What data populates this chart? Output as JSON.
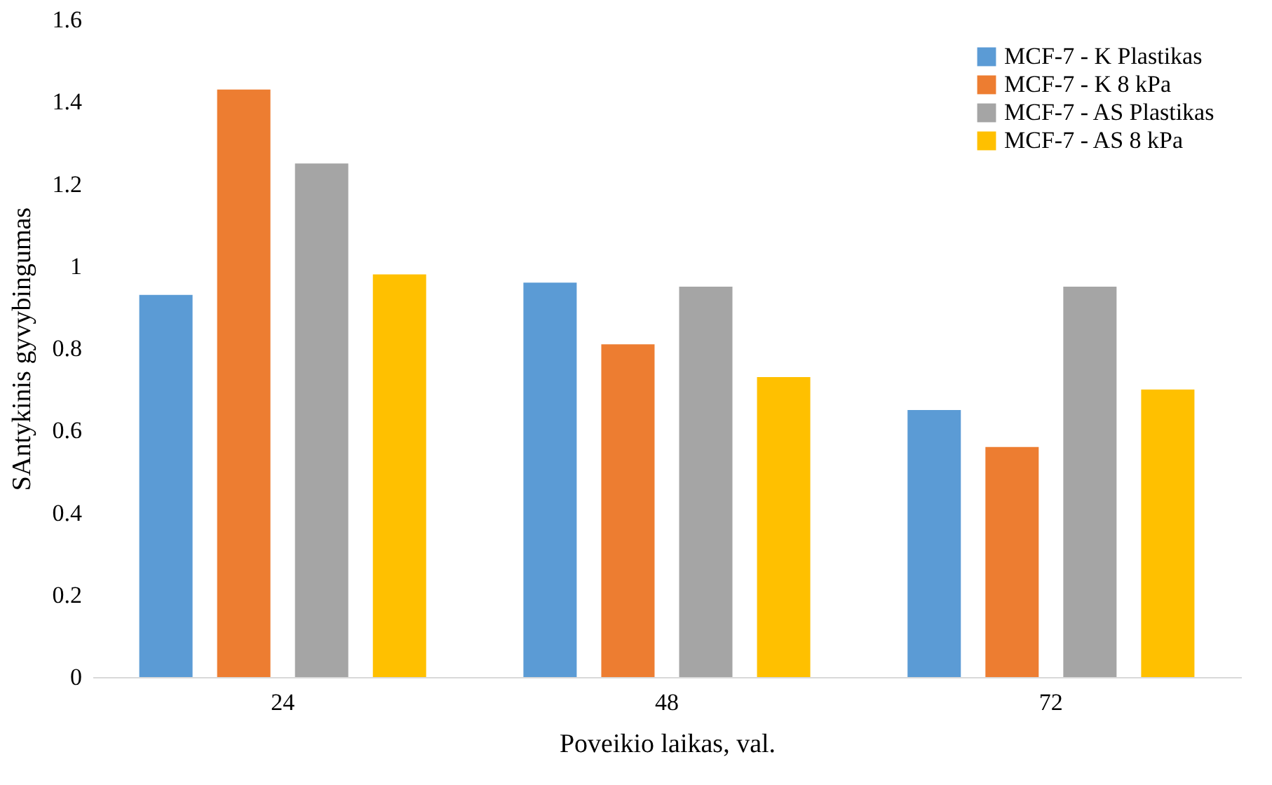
{
  "chart_data": {
    "type": "bar",
    "xlabel": "Poveikio laikas, val.",
    "ylabel": "SAntykinis gyvybingumas",
    "categories": [
      "24",
      "48",
      "72"
    ],
    "series": [
      {
        "name": "MCF-7 - K Plastikas",
        "color": "#5b9bd5",
        "values": [
          0.93,
          0.96,
          0.65
        ]
      },
      {
        "name": "MCF-7 - K 8 kPa",
        "color": "#ed7d31",
        "values": [
          1.43,
          0.81,
          0.56
        ]
      },
      {
        "name": "MCF-7 - AS Plastikas",
        "color": "#a5a5a5",
        "values": [
          1.25,
          0.95,
          0.95
        ]
      },
      {
        "name": "MCF-7 - AS 8 kPa",
        "color": "#ffc000",
        "values": [
          0.98,
          0.73,
          0.7
        ]
      }
    ],
    "ylim": [
      0,
      1.6
    ],
    "yticks": [
      0,
      0.2,
      0.4,
      0.6,
      0.8,
      1,
      1.2,
      1.4,
      1.6
    ],
    "grid": false,
    "legend": "top right"
  }
}
